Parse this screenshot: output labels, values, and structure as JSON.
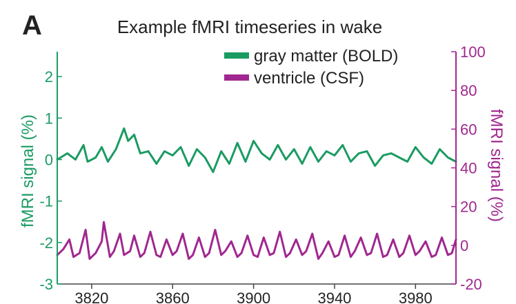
{
  "panel_label": "A",
  "colors": {
    "bold": "#1a9b62",
    "csf": "#a0278f",
    "text": "#222222",
    "background": "#ffffff"
  },
  "chart_data": {
    "type": "line",
    "title": "Example fMRI timeseries in wake",
    "xlabel": "",
    "xlim": [
      3803,
      4000
    ],
    "xticks": [
      3820,
      3860,
      3900,
      3940,
      3980
    ],
    "left_axis": {
      "label": "fMRI signal (%)",
      "ylim": [
        -3,
        2.6
      ],
      "ticks": [
        -3,
        -2,
        -1,
        0,
        1,
        2
      ],
      "tick_labels": [
        "-3",
        "-2",
        "-1",
        "0",
        "1",
        "2"
      ]
    },
    "right_axis": {
      "label": "fMRI signal (%)",
      "ylim": [
        -20,
        100
      ],
      "ticks": [
        -20,
        0,
        20,
        40,
        60,
        80,
        100
      ],
      "tick_labels": [
        "-20",
        "0",
        "20",
        "40",
        "60",
        "80",
        "100"
      ]
    },
    "legend": {
      "placement": "top-right"
    },
    "grid": false,
    "series": [
      {
        "name": "gray matter (BOLD)",
        "axis": "left",
        "x": [
          3803,
          3808,
          3812,
          3816,
          3818,
          3822,
          3825,
          3828,
          3832,
          3836,
          3838,
          3841,
          3844,
          3848,
          3852,
          3856,
          3860,
          3864,
          3868,
          3872,
          3876,
          3880,
          3884,
          3888,
          3892,
          3896,
          3900,
          3904,
          3908,
          3912,
          3916,
          3920,
          3924,
          3928,
          3932,
          3936,
          3940,
          3944,
          3948,
          3952,
          3956,
          3960,
          3964,
          3968,
          3972,
          3976,
          3980,
          3984,
          3988,
          3992,
          3996,
          4000
        ],
        "values": [
          0.0,
          0.15,
          0.0,
          0.35,
          -0.05,
          0.05,
          0.3,
          -0.05,
          0.25,
          0.75,
          0.45,
          0.6,
          0.15,
          0.2,
          -0.1,
          0.2,
          0.1,
          0.3,
          -0.15,
          0.25,
          0.05,
          -0.3,
          0.2,
          -0.1,
          0.4,
          -0.05,
          0.45,
          0.15,
          0.0,
          0.35,
          0.0,
          0.25,
          -0.1,
          0.3,
          -0.05,
          0.2,
          0.1,
          0.35,
          -0.05,
          0.15,
          0.2,
          -0.15,
          0.1,
          0.15,
          0.05,
          -0.05,
          0.3,
          0.05,
          -0.1,
          0.25,
          0.05,
          -0.05
        ]
      },
      {
        "name": "ventricle (CSF)",
        "axis": "right",
        "x": [
          3803,
          3806,
          3809,
          3811,
          3814,
          3817,
          3819,
          3822,
          3825,
          3826,
          3829,
          3831,
          3834,
          3836,
          3839,
          3841,
          3844,
          3846,
          3849,
          3852,
          3854,
          3857,
          3860,
          3862,
          3865,
          3868,
          3870,
          3873,
          3876,
          3878,
          3881,
          3884,
          3886,
          3889,
          3892,
          3894,
          3897,
          3900,
          3902,
          3905,
          3908,
          3910,
          3913,
          3916,
          3918,
          3921,
          3924,
          3926,
          3929,
          3932,
          3934,
          3937,
          3940,
          3942,
          3945,
          3948,
          3950,
          3953,
          3956,
          3958,
          3961,
          3964,
          3966,
          3969,
          3972,
          3974,
          3977,
          3980,
          3982,
          3985,
          3988,
          3990,
          3993,
          3996,
          3998,
          4000
        ],
        "values": [
          -5,
          -2,
          3,
          -6,
          -4,
          8,
          -7,
          -4,
          2,
          12,
          -6,
          -3,
          6,
          -5,
          -3,
          5,
          -6,
          -4,
          7,
          -5,
          -6,
          3,
          -5,
          -3,
          6,
          -7,
          -5,
          4,
          -6,
          -4,
          8,
          -5,
          -3,
          2,
          -6,
          -4,
          5,
          -5,
          -6,
          4,
          -5,
          -4,
          7,
          -6,
          -4,
          3,
          -5,
          -3,
          6,
          -7,
          -4,
          2,
          -6,
          -5,
          5,
          -6,
          -3,
          4,
          -5,
          -4,
          6,
          -6,
          -5,
          3,
          -6,
          -4,
          5,
          -5,
          -3,
          2,
          -6,
          -5,
          4,
          -5,
          -4,
          3
        ]
      }
    ]
  }
}
